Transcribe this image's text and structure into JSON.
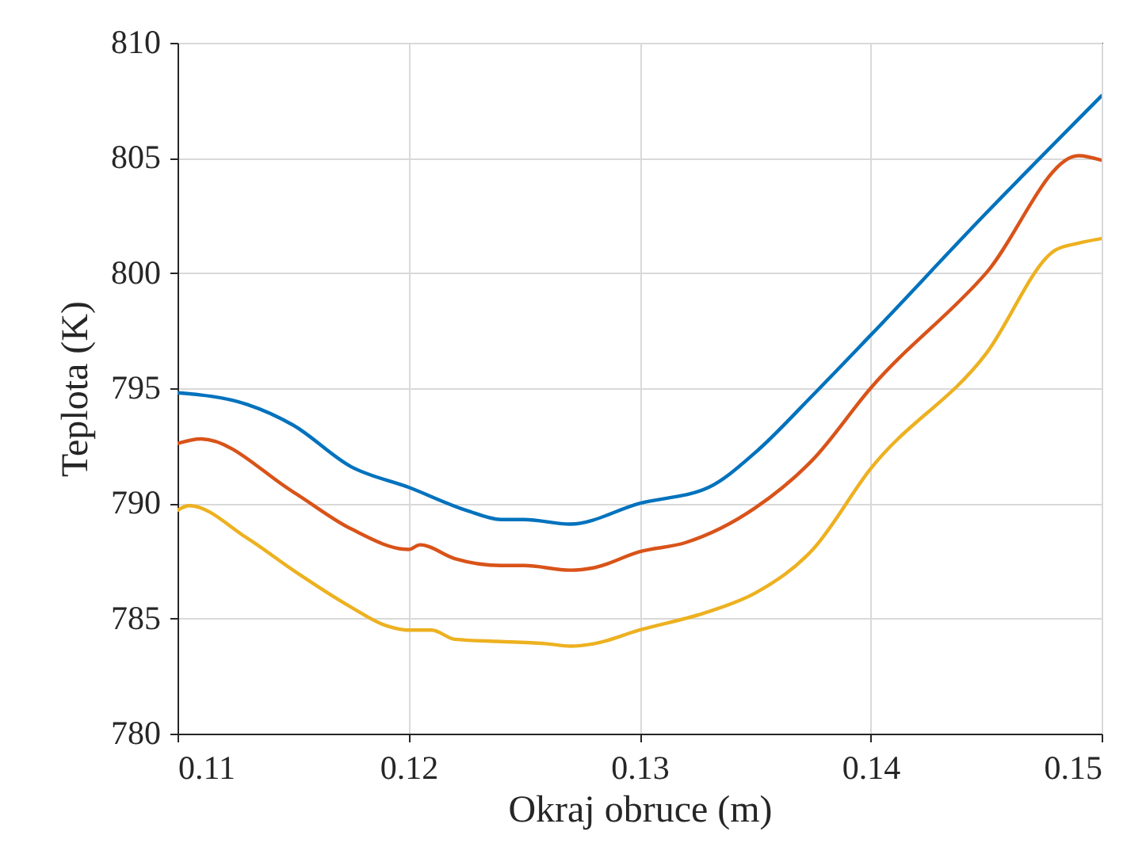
{
  "chart_data": {
    "type": "line",
    "xlabel": "Okraj obruce (m)",
    "ylabel": "Teplota (K)",
    "xlim": [
      0.11,
      0.15
    ],
    "xticks": [
      0.11,
      0.12,
      0.13,
      0.14,
      0.15
    ],
    "ylim": [
      780,
      810
    ],
    "yticks": [
      780,
      785,
      790,
      795,
      800,
      805,
      810
    ],
    "grid": true,
    "marker": "none",
    "line_style": "solid",
    "series": [
      {
        "color": "#0072bd",
        "x": [
          0.11,
          0.113,
          0.115,
          0.1175,
          0.12,
          0.1225,
          0.124,
          0.125,
          0.127,
          0.13,
          0.133,
          0.135,
          0.1375,
          0.14,
          0.145,
          0.15
        ],
        "values": [
          794.8,
          794.3,
          793.4,
          791.6,
          790.7,
          789.7,
          789.3,
          789.3,
          789.1,
          790.0,
          790.7,
          792.2,
          794.7,
          797.3,
          802.6,
          807.7
        ]
      },
      {
        "color": "#d95319",
        "x": [
          0.11,
          0.111,
          0.115,
          0.1175,
          0.12,
          0.1205,
          0.122,
          0.124,
          0.125,
          0.127,
          0.128,
          0.13,
          0.132,
          0.135,
          0.1375,
          0.14,
          0.145,
          0.149,
          0.15
        ],
        "values": [
          792.6,
          792.8,
          790.5,
          788.9,
          788.0,
          788.2,
          787.6,
          787.3,
          787.3,
          787.1,
          787.2,
          787.9,
          788.3,
          789.8,
          791.9,
          795.0,
          800.0,
          805.1,
          804.9
        ]
      },
      {
        "color": "#edb120",
        "x": [
          0.11,
          0.1105,
          0.113,
          0.115,
          0.1175,
          0.119,
          0.12,
          0.121,
          0.122,
          0.124,
          0.126,
          0.127,
          0.128,
          0.13,
          0.133,
          0.135,
          0.1375,
          0.14,
          0.145,
          0.148,
          0.149,
          0.15
        ],
        "values": [
          789.7,
          789.9,
          788.5,
          787.1,
          785.5,
          784.7,
          784.5,
          784.5,
          784.1,
          784.0,
          783.9,
          783.8,
          783.9,
          784.5,
          785.3,
          786.1,
          788.0,
          791.5,
          796.5,
          801.0,
          801.3,
          801.5
        ]
      }
    ]
  }
}
